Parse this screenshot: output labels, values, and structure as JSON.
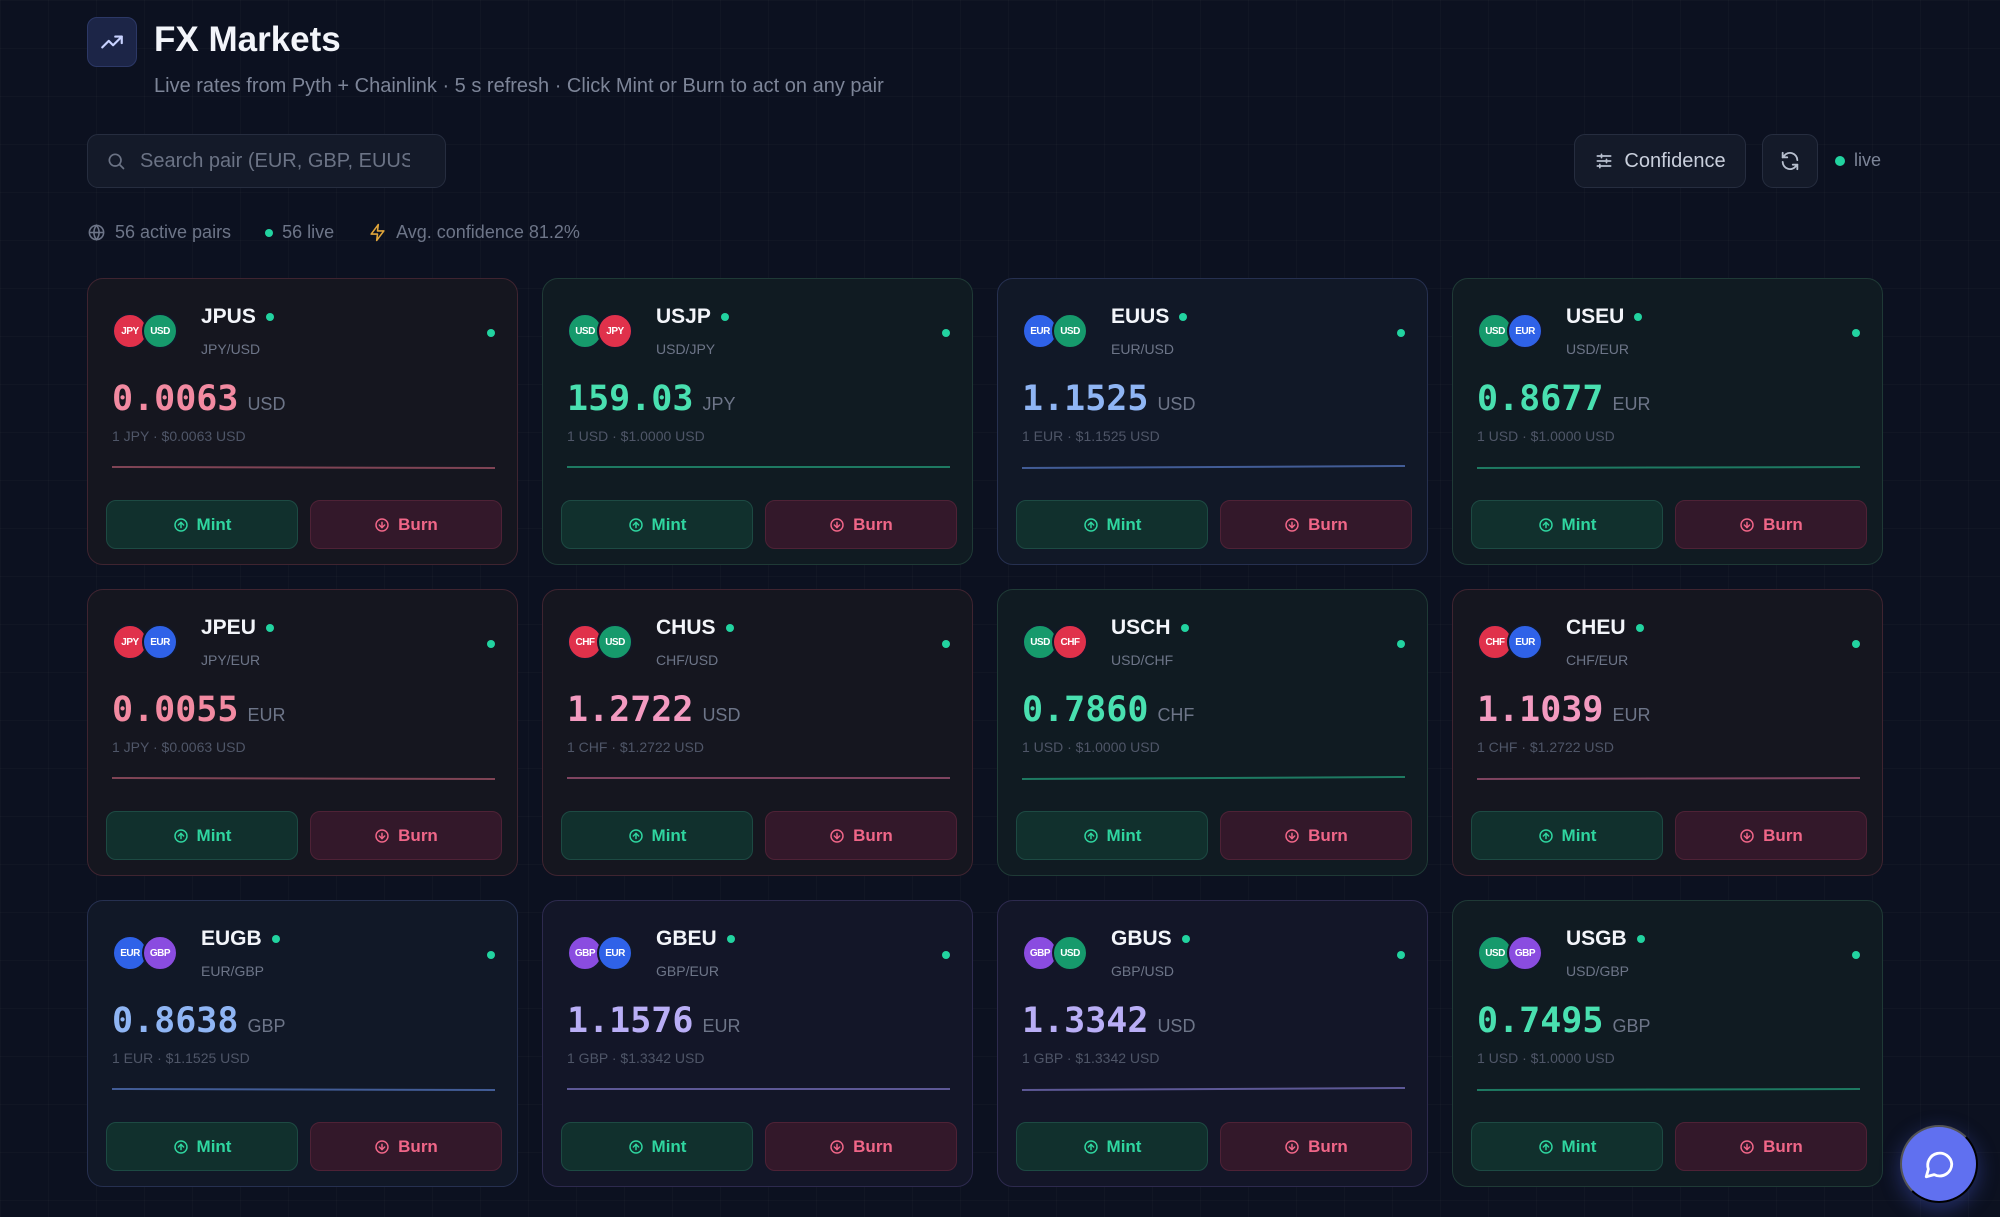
{
  "header": {
    "title": "FX Markets",
    "subtitle": "Live rates from Pyth + Chainlink · 5 s refresh · Click Mint or Burn to act on any pair",
    "logo_icon": "trending-up-icon"
  },
  "toolbar": {
    "search_placeholder": "Search pair (EUR, GBP, EUUS...",
    "search_value": "",
    "confidence_label": "Confidence",
    "live_label": "live"
  },
  "stats": {
    "active_pairs": "56 active pairs",
    "live": "56 live",
    "avg_confidence": "Avg. confidence 81.2%"
  },
  "currency_colors": {
    "JPY": "#e0314b",
    "USD": "#169a6c",
    "EUR": "#2f62e8",
    "CHF": "#e0314b",
    "GBP": "#8a4ce0"
  },
  "price_colors": {
    "red": "#f28aa1",
    "green": "#49e0b0",
    "blue": "#8fb5f4",
    "pink": "#f39ac0",
    "purple": "#b9aef6"
  },
  "cards": [
    {
      "symbol": "JPUS",
      "pair": "JPY/USD",
      "base": "JPY",
      "quote": "USD",
      "price": "0.0063",
      "unit": "USD",
      "sub": "1 JPY · $0.0063 USD",
      "color": "red",
      "tint": "red",
      "spark": "#7f4455",
      "mint": "Mint",
      "burn": "Burn"
    },
    {
      "symbol": "USJP",
      "pair": "USD/JPY",
      "base": "USD",
      "quote": "JPY",
      "price": "159.03",
      "unit": "JPY",
      "sub": "1 USD · $1.0000 USD",
      "color": "green",
      "tint": "green",
      "spark": "#1e7a62",
      "mint": "Mint",
      "burn": "Burn"
    },
    {
      "symbol": "EUUS",
      "pair": "EUR/USD",
      "base": "EUR",
      "quote": "USD",
      "price": "1.1525",
      "unit": "USD",
      "sub": "1 EUR · $1.1525 USD",
      "color": "blue",
      "tint": "blue",
      "spark": "#425c96",
      "mint": "Mint",
      "burn": "Burn"
    },
    {
      "symbol": "USEU",
      "pair": "USD/EUR",
      "base": "USD",
      "quote": "EUR",
      "price": "0.8677",
      "unit": "EUR",
      "sub": "1 USD · $1.0000 USD",
      "color": "green",
      "tint": "green",
      "spark": "#1e7a62",
      "mint": "Mint",
      "burn": "Burn"
    },
    {
      "symbol": "JPEU",
      "pair": "JPY/EUR",
      "base": "JPY",
      "quote": "EUR",
      "price": "0.0055",
      "unit": "EUR",
      "sub": "1 JPY · $0.0063 USD",
      "color": "red",
      "tint": "red",
      "spark": "#7f4455",
      "mint": "Mint",
      "burn": "Burn"
    },
    {
      "symbol": "CHUS",
      "pair": "CHF/USD",
      "base": "CHF",
      "quote": "USD",
      "price": "1.2722",
      "unit": "USD",
      "sub": "1 CHF · $1.2722 USD",
      "color": "pink",
      "tint": "red",
      "spark": "#7f4460",
      "mint": "Mint",
      "burn": "Burn"
    },
    {
      "symbol": "USCH",
      "pair": "USD/CHF",
      "base": "USD",
      "quote": "CHF",
      "price": "0.7860",
      "unit": "CHF",
      "sub": "1 USD · $1.0000 USD",
      "color": "green",
      "tint": "green",
      "spark": "#1e7a62",
      "mint": "Mint",
      "burn": "Burn"
    },
    {
      "symbol": "CHEU",
      "pair": "CHF/EUR",
      "base": "CHF",
      "quote": "EUR",
      "price": "1.1039",
      "unit": "EUR",
      "sub": "1 CHF · $1.2722 USD",
      "color": "pink",
      "tint": "red",
      "spark": "#7f4460",
      "mint": "Mint",
      "burn": "Burn"
    },
    {
      "symbol": "EUGB",
      "pair": "EUR/GBP",
      "base": "EUR",
      "quote": "GBP",
      "price": "0.8638",
      "unit": "GBP",
      "sub": "1 EUR · $1.1525 USD",
      "color": "blue",
      "tint": "blue",
      "spark": "#425c96",
      "mint": "Mint",
      "burn": "Burn"
    },
    {
      "symbol": "GBEU",
      "pair": "GBP/EUR",
      "base": "GBP",
      "quote": "EUR",
      "price": "1.1576",
      "unit": "EUR",
      "sub": "1 GBP · $1.3342 USD",
      "color": "purple",
      "tint": "purple",
      "spark": "#5d5896",
      "mint": "Mint",
      "burn": "Burn"
    },
    {
      "symbol": "GBUS",
      "pair": "GBP/USD",
      "base": "GBP",
      "quote": "USD",
      "price": "1.3342",
      "unit": "USD",
      "sub": "1 GBP · $1.3342 USD",
      "color": "purple",
      "tint": "purple",
      "spark": "#5d5896",
      "mint": "Mint",
      "burn": "Burn"
    },
    {
      "symbol": "USGB",
      "pair": "USD/GBP",
      "base": "USD",
      "quote": "GBP",
      "price": "0.7495",
      "unit": "GBP",
      "sub": "1 USD · $1.0000 USD",
      "color": "green",
      "tint": "green",
      "spark": "#1e7a62",
      "mint": "Mint",
      "burn": "Burn"
    }
  ]
}
